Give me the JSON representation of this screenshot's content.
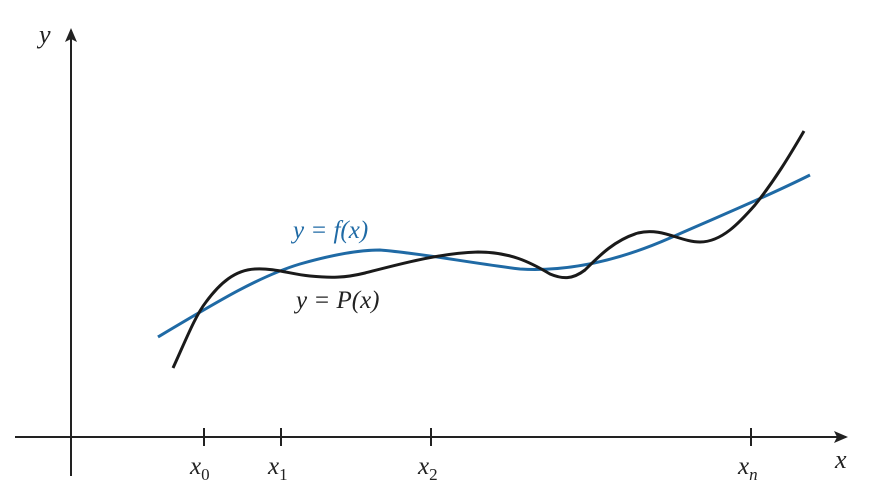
{
  "diagram": {
    "axes": {
      "x_label": "x",
      "y_label": "y"
    },
    "ticks": [
      {
        "base": "x",
        "sub": "0"
      },
      {
        "base": "x",
        "sub": "1"
      },
      {
        "base": "x",
        "sub": "2"
      },
      {
        "base": "x",
        "sub": "n"
      }
    ],
    "curves": {
      "f": {
        "label": "y = f(x)",
        "color": "#1f6aa5"
      },
      "p": {
        "label": "y = P(x)",
        "color": "#1a1a1a"
      }
    },
    "axis_color": "#222222"
  }
}
